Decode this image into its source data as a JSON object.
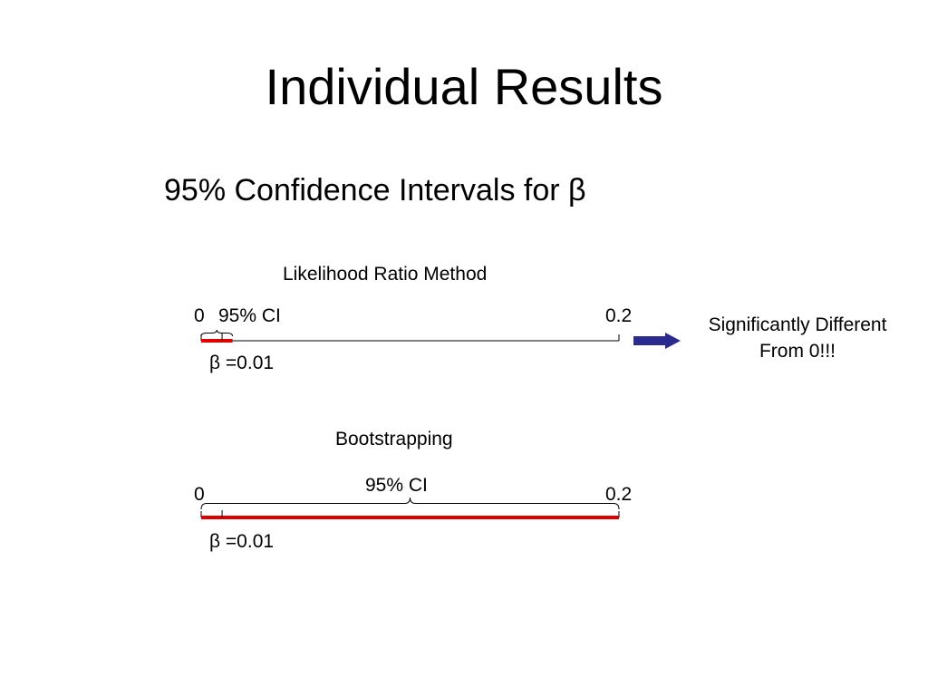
{
  "title": "Individual Results",
  "subtitle": "95% Confidence Intervals for β",
  "colors": {
    "axis": "#000000",
    "interval": "#e00000",
    "arrow": "#2b2b8f"
  },
  "panels": [
    {
      "method": "Likelihood Ratio Method",
      "axis_min_label": "0",
      "axis_max_label": "0.2",
      "axis_range": [
        0,
        0.2
      ],
      "ci_label": "95% CI",
      "estimate": 0.01,
      "estimate_label": "β =0.01",
      "ci": [
        0,
        0.015
      ],
      "conclusion": "Significantly Different From 0!!!"
    },
    {
      "method": "Bootstrapping",
      "axis_min_label": "0",
      "axis_max_label": "0.2",
      "axis_range": [
        0,
        0.2
      ],
      "ci_label": "95% CI",
      "estimate": 0.01,
      "estimate_label": "β =0.01",
      "ci": [
        0,
        0.2
      ]
    }
  ]
}
